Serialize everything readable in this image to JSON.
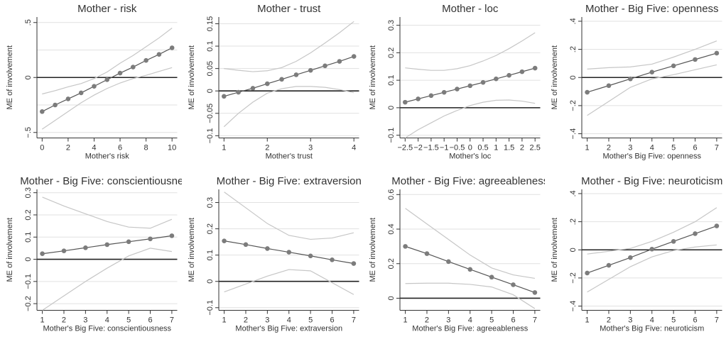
{
  "chart_data": [
    {
      "type": "line",
      "title": "Mother - risk",
      "xlabel": "Mother's risk",
      "ylabel": "ME of involvement",
      "xlim": [
        -0.4,
        10.4
      ],
      "ylim": [
        -0.55,
        0.55
      ],
      "xticks": [
        0,
        2,
        4,
        6,
        8,
        10
      ],
      "yticks": [
        -0.5,
        0,
        0.5
      ],
      "ytick_labels": [
        "−.5",
        "0",
        ".5"
      ],
      "ygrid": [
        -0.5,
        -0.25,
        0,
        0.25,
        0.5
      ],
      "x": [
        0,
        1,
        2,
        3,
        4,
        5,
        6,
        7,
        8,
        9,
        10
      ],
      "series": [
        {
          "role": "estimate",
          "values": [
            -0.31,
            -0.25,
            -0.195,
            -0.14,
            -0.08,
            -0.02,
            0.04,
            0.095,
            0.155,
            0.21,
            0.27
          ]
        },
        {
          "role": "ci_lower",
          "values": [
            -0.47,
            -0.39,
            -0.31,
            -0.23,
            -0.16,
            -0.1,
            -0.05,
            -0.01,
            0.02,
            0.055,
            0.09
          ]
        },
        {
          "role": "ci_upper",
          "values": [
            -0.15,
            -0.12,
            -0.085,
            -0.055,
            -0.01,
            0.05,
            0.13,
            0.2,
            0.28,
            0.36,
            0.45
          ]
        }
      ]
    },
    {
      "type": "line",
      "title": "Mother - trust",
      "xlabel": "Mother's trust",
      "ylabel": "ME of involvement",
      "xlim": [
        0.88,
        4.12
      ],
      "ylim": [
        -0.105,
        0.165
      ],
      "xticks": [
        1,
        2,
        3,
        4
      ],
      "yticks": [
        -0.1,
        -0.05,
        0,
        0.05,
        0.1,
        0.15
      ],
      "ytick_labels": [
        "−0.1",
        "−0.05",
        "0",
        "0.05",
        "0.1",
        "0.15"
      ],
      "ygrid": [
        -0.1,
        -0.05,
        0,
        0.05,
        0.1,
        0.15
      ],
      "x": [
        1,
        1.333,
        1.667,
        2,
        2.333,
        2.667,
        3,
        3.333,
        3.667,
        4
      ],
      "series": [
        {
          "role": "estimate",
          "values": [
            -0.012,
            -0.003,
            0.006,
            0.016,
            0.026,
            0.036,
            0.046,
            0.056,
            0.066,
            0.077
          ]
        },
        {
          "role": "ci_lower",
          "values": [
            -0.08,
            -0.05,
            -0.025,
            -0.005,
            0.005,
            0.01,
            0.01,
            0.008,
            0.003,
            -0.004
          ]
        },
        {
          "role": "ci_upper",
          "values": [
            0.05,
            0.046,
            0.043,
            0.045,
            0.052,
            0.066,
            0.085,
            0.107,
            0.13,
            0.155
          ]
        }
      ]
    },
    {
      "type": "line",
      "title": "Mother - loc",
      "xlabel": "Mother's loc",
      "ylabel": "ME of involvement",
      "xlim": [
        -2.7,
        2.7
      ],
      "ylim": [
        -0.11,
        0.33
      ],
      "xticks": [
        -2.5,
        -2,
        -1.5,
        -1,
        -0.5,
        0,
        0.5,
        1,
        1.5,
        2,
        2.5
      ],
      "xtick_labels": [
        "−2.5",
        "−2",
        "−1.5",
        "−1",
        "−0.5",
        "0",
        "0.5",
        "1",
        "1.5",
        "2",
        "2.5"
      ],
      "yticks": [
        -0.1,
        0,
        0.1,
        0.2,
        0.3
      ],
      "ytick_labels": [
        "−0.1",
        "0",
        "0.1",
        "0.2",
        "0.3"
      ],
      "ygrid": [
        -0.1,
        0,
        0.1,
        0.2,
        0.3
      ],
      "x": [
        -2.5,
        -2,
        -1.5,
        -1,
        -0.5,
        0,
        0.5,
        1,
        1.5,
        2,
        2.5
      ],
      "series": [
        {
          "role": "estimate",
          "values": [
            0.02,
            0.032,
            0.044,
            0.056,
            0.068,
            0.08,
            0.092,
            0.105,
            0.118,
            0.131,
            0.144
          ]
        },
        {
          "role": "ci_lower",
          "values": [
            -0.11,
            -0.08,
            -0.055,
            -0.03,
            -0.01,
            0.008,
            0.02,
            0.027,
            0.028,
            0.024,
            0.016
          ]
        },
        {
          "role": "ci_upper",
          "values": [
            0.145,
            0.14,
            0.136,
            0.136,
            0.142,
            0.153,
            0.17,
            0.19,
            0.215,
            0.243,
            0.273
          ]
        }
      ]
    },
    {
      "type": "line",
      "title": "Mother - Big Five: openness",
      "xlabel": "Mother's Big Five: openness",
      "ylabel": "ME of involvement",
      "xlim": [
        0.75,
        7.25
      ],
      "ylim": [
        -0.43,
        0.43
      ],
      "xticks": [
        1,
        2,
        3,
        4,
        5,
        6,
        7
      ],
      "yticks": [
        -0.4,
        -0.2,
        0,
        0.2,
        0.4
      ],
      "ytick_labels": [
        "−.4",
        "−.2",
        "0",
        ".2",
        ".4"
      ],
      "ygrid": [
        -0.4,
        -0.2,
        0,
        0.2,
        0.4
      ],
      "x": [
        1,
        2,
        3,
        4,
        5,
        6,
        7
      ],
      "series": [
        {
          "role": "estimate",
          "values": [
            -0.105,
            -0.058,
            -0.01,
            0.038,
            0.083,
            0.128,
            0.173
          ]
        },
        {
          "role": "ci_lower",
          "values": [
            -0.27,
            -0.17,
            -0.07,
            -0.01,
            0.02,
            0.055,
            0.09
          ]
        },
        {
          "role": "ci_upper",
          "values": [
            0.06,
            0.07,
            0.075,
            0.095,
            0.145,
            0.2,
            0.26
          ]
        }
      ]
    },
    {
      "type": "line",
      "title": "Mother - Big Five: conscientiousness",
      "xlabel": "Mother's Big Five: conscientiousness",
      "ylabel": "ME of involvement",
      "xlim": [
        0.75,
        7.25
      ],
      "ylim": [
        -0.23,
        0.315
      ],
      "xticks": [
        1,
        2,
        3,
        4,
        5,
        6,
        7
      ],
      "yticks": [
        -0.2,
        -0.1,
        0,
        0.1,
        0.2,
        0.3
      ],
      "ytick_labels": [
        "−0.2",
        "−0.1",
        "0",
        "0.1",
        "0.2",
        "0.3"
      ],
      "ygrid": [
        -0.2,
        -0.1,
        0,
        0.1,
        0.2,
        0.3
      ],
      "x": [
        1,
        2,
        3,
        4,
        5,
        6,
        7
      ],
      "series": [
        {
          "role": "estimate",
          "values": [
            0.025,
            0.038,
            0.052,
            0.066,
            0.079,
            0.092,
            0.106
          ]
        },
        {
          "role": "ci_lower",
          "values": [
            -0.23,
            -0.165,
            -0.1,
            -0.04,
            0.015,
            0.05,
            0.035
          ]
        },
        {
          "role": "ci_upper",
          "values": [
            0.28,
            0.24,
            0.205,
            0.17,
            0.145,
            0.14,
            0.18
          ]
        }
      ]
    },
    {
      "type": "line",
      "title": "Mother - Big Five: extraversion",
      "xlabel": "Mother's Big Five: extraversion",
      "ylabel": "ME of involvement",
      "xlim": [
        0.75,
        7.25
      ],
      "ylim": [
        -0.11,
        0.35
      ],
      "xticks": [
        1,
        2,
        3,
        4,
        5,
        6,
        7
      ],
      "yticks": [
        -0.1,
        0,
        0.1,
        0.2,
        0.3
      ],
      "ytick_labels": [
        "−0.1",
        "0",
        "0.1",
        "0.2",
        "0.3"
      ],
      "ygrid": [
        -0.1,
        0,
        0.1,
        0.2,
        0.3
      ],
      "x": [
        1,
        2,
        3,
        4,
        5,
        6,
        7
      ],
      "series": [
        {
          "role": "estimate",
          "values": [
            0.154,
            0.14,
            0.125,
            0.111,
            0.097,
            0.082,
            0.068
          ]
        },
        {
          "role": "ci_lower",
          "values": [
            -0.04,
            -0.01,
            0.02,
            0.045,
            0.04,
            -0.005,
            -0.05
          ]
        },
        {
          "role": "ci_upper",
          "values": [
            0.34,
            0.28,
            0.22,
            0.175,
            0.16,
            0.165,
            0.185
          ]
        }
      ]
    },
    {
      "type": "line",
      "title": "Mother - Big Five: agreeableness",
      "xlabel": "Mother's Big Five: agreeableness",
      "ylabel": "ME of involvement",
      "xlim": [
        0.75,
        7.25
      ],
      "ylim": [
        -0.07,
        0.63
      ],
      "xticks": [
        1,
        2,
        3,
        4,
        5,
        6,
        7
      ],
      "yticks": [
        0,
        0.2,
        0.4,
        0.6
      ],
      "ytick_labels": [
        "0",
        "0.2",
        "0.4",
        "0.6"
      ],
      "ygrid": [
        0,
        0.2,
        0.4,
        0.6
      ],
      "x": [
        1,
        2,
        3,
        4,
        5,
        6,
        7
      ],
      "series": [
        {
          "role": "estimate",
          "values": [
            0.3,
            0.258,
            0.212,
            0.167,
            0.122,
            0.078,
            0.033
          ]
        },
        {
          "role": "ci_lower",
          "values": [
            0.085,
            0.087,
            0.087,
            0.08,
            0.065,
            0.02,
            -0.06
          ]
        },
        {
          "role": "ci_upper",
          "values": [
            0.52,
            0.43,
            0.34,
            0.25,
            0.175,
            0.135,
            0.115
          ]
        }
      ]
    },
    {
      "type": "line",
      "title": "Mother - Big Five: neuroticism",
      "xlabel": "Mother's Big Five: neuroticism",
      "ylabel": "ME of involvement",
      "xlim": [
        0.75,
        7.25
      ],
      "ylim": [
        -0.43,
        0.43
      ],
      "xticks": [
        1,
        2,
        3,
        4,
        5,
        6,
        7
      ],
      "yticks": [
        -0.4,
        -0.2,
        0,
        0.2,
        0.4
      ],
      "ytick_labels": [
        "−.4",
        "−.2",
        "0",
        ".2",
        ".4"
      ],
      "ygrid": [
        -0.4,
        -0.2,
        0,
        0.2,
        0.4
      ],
      "x": [
        1,
        2,
        3,
        4,
        5,
        6,
        7
      ],
      "series": [
        {
          "role": "estimate",
          "values": [
            -0.165,
            -0.11,
            -0.055,
            0.005,
            0.06,
            0.115,
            0.17
          ]
        },
        {
          "role": "ci_lower",
          "values": [
            -0.3,
            -0.21,
            -0.12,
            -0.05,
            -0.005,
            0.02,
            0.035
          ]
        },
        {
          "role": "ci_upper",
          "values": [
            -0.03,
            -0.01,
            0.01,
            0.06,
            0.125,
            0.2,
            0.3
          ]
        }
      ]
    }
  ]
}
